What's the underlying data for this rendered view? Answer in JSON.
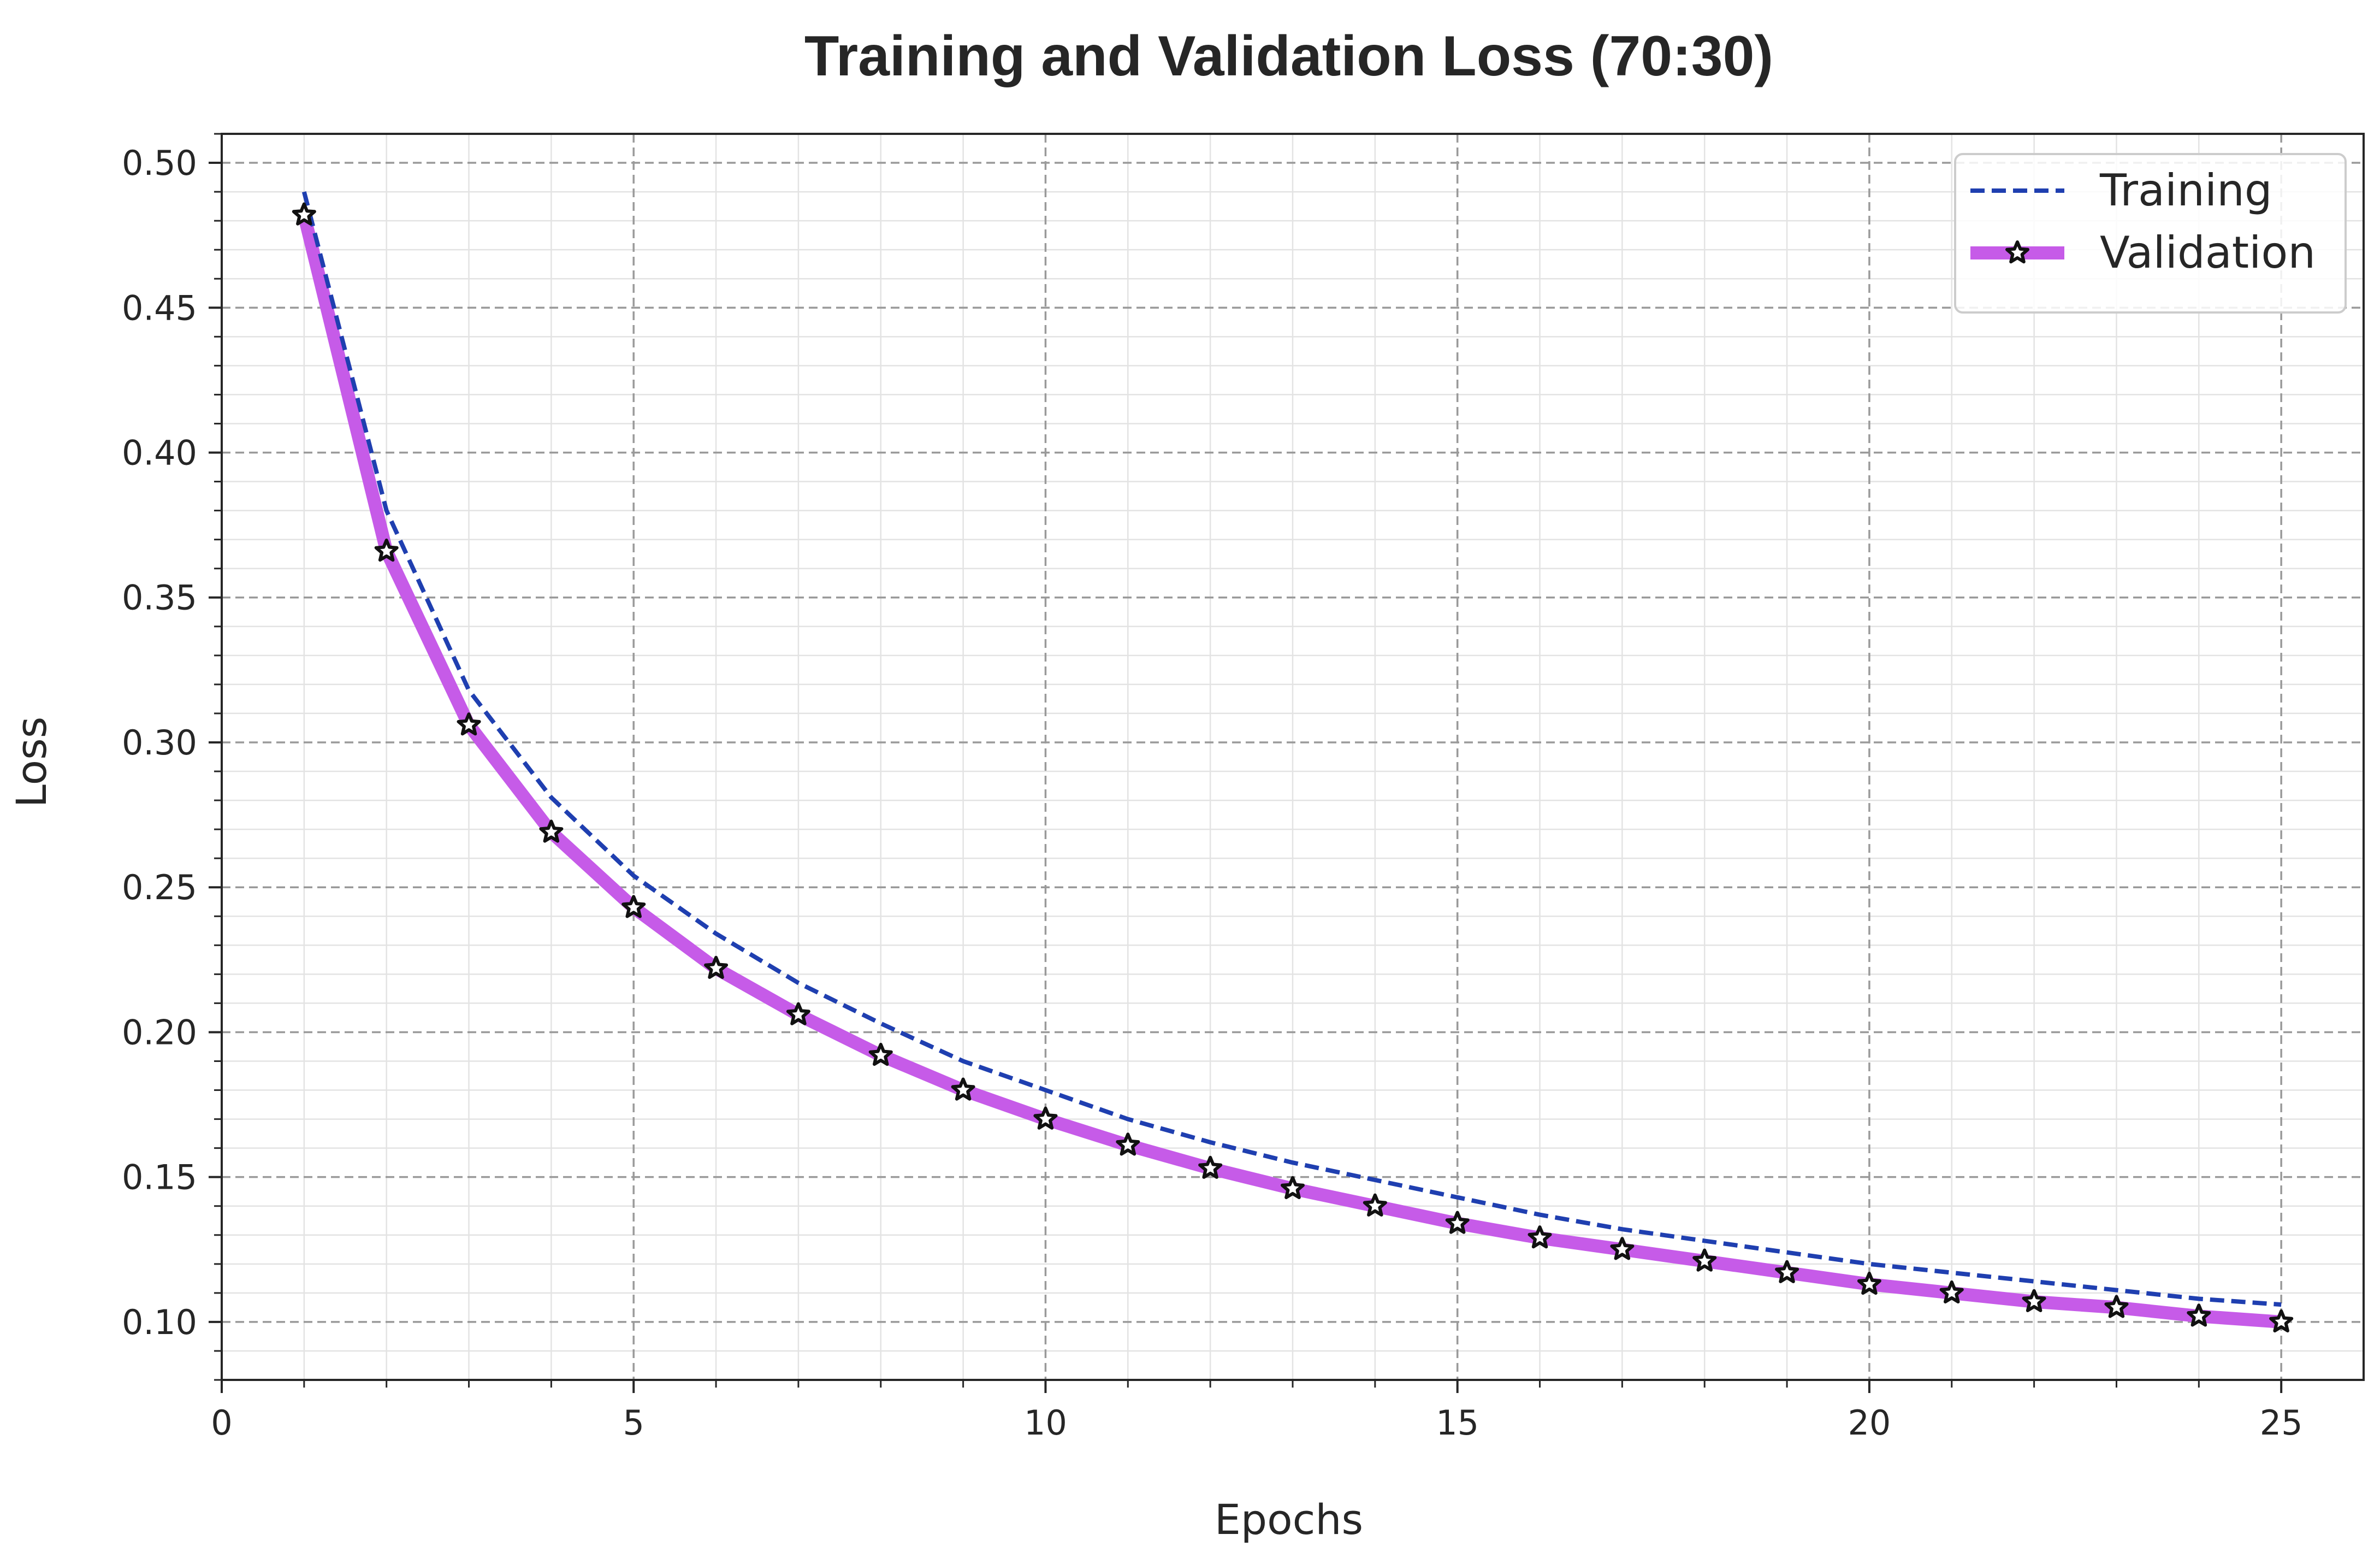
{
  "chart_data": {
    "type": "line",
    "title": "Training and Validation Loss (70:30)",
    "xlabel": "Epochs",
    "ylabel": "Loss",
    "xlim": [
      0,
      26
    ],
    "ylim": [
      0.08,
      0.51
    ],
    "xticks": [
      0,
      5,
      10,
      15,
      20,
      25
    ],
    "xtick_labels": [
      "0",
      "5",
      "10",
      "15",
      "20",
      "25"
    ],
    "yticks": [
      0.1,
      0.15,
      0.2,
      0.25,
      0.3,
      0.35,
      0.4,
      0.45,
      0.5
    ],
    "ytick_labels": [
      "0.10",
      "0.15",
      "0.20",
      "0.25",
      "0.30",
      "0.35",
      "0.40",
      "0.45",
      "0.50"
    ],
    "grid": true,
    "legend_position": "top-right",
    "x": [
      1,
      2,
      3,
      4,
      5,
      6,
      7,
      8,
      9,
      10,
      11,
      12,
      13,
      14,
      15,
      16,
      17,
      18,
      19,
      20,
      21,
      22,
      23,
      24,
      25
    ],
    "series": [
      {
        "name": "Training",
        "color": "#1f3fb0",
        "style": "dashed",
        "values": [
          0.49,
          0.38,
          0.318,
          0.281,
          0.254,
          0.234,
          0.217,
          0.203,
          0.19,
          0.18,
          0.17,
          0.162,
          0.155,
          0.149,
          0.143,
          0.137,
          0.132,
          0.128,
          0.124,
          0.12,
          0.117,
          0.114,
          0.111,
          0.108,
          0.106
        ]
      },
      {
        "name": "Validation",
        "color": "#c65be8",
        "style": "solid-star",
        "values": [
          0.482,
          0.366,
          0.306,
          0.269,
          0.243,
          0.222,
          0.206,
          0.192,
          0.18,
          0.17,
          0.161,
          0.153,
          0.146,
          0.14,
          0.134,
          0.129,
          0.125,
          0.121,
          0.117,
          0.113,
          0.11,
          0.107,
          0.105,
          0.102,
          0.1
        ]
      }
    ]
  }
}
